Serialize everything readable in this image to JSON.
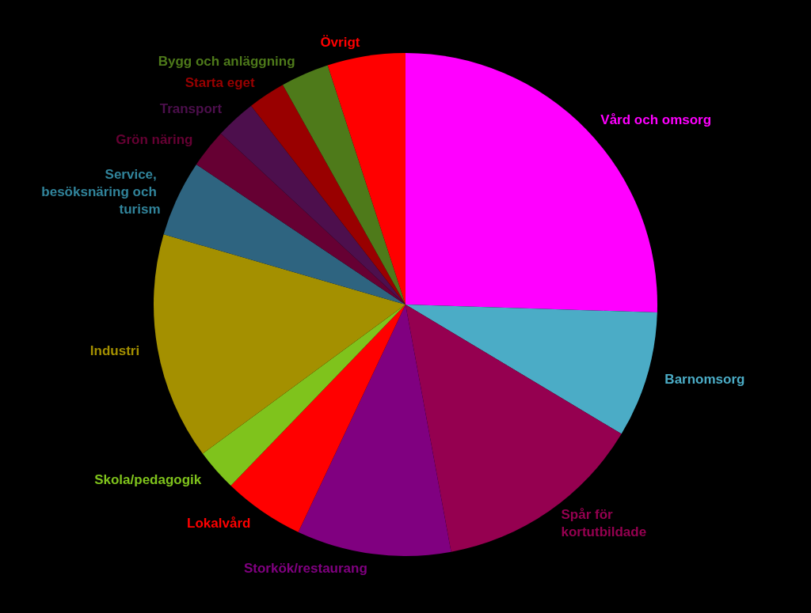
{
  "chart_data": {
    "type": "pie",
    "categories": [
      "Vård och omsorg",
      "Barnomsorg",
      "Spår för kortutbildade",
      "Storkök/restaurang",
      "Lokalvård",
      "Skola/pedagogik",
      "Industri",
      "Service, besöksnäring och turism",
      "Grön näring",
      "Transport",
      "Starta eget",
      "Bygg och anläggning",
      "Övrigt"
    ],
    "values": [
      25.5,
      8.1,
      13.5,
      9.9,
      5.2,
      2.7,
      14.6,
      4.9,
      2.5,
      2.6,
      2.4,
      3.1,
      5.0
    ],
    "colors": [
      "#ff00ff",
      "#4bacc6",
      "#950050",
      "#800080",
      "#ff0000",
      "#7fc31c",
      "#a49000",
      "#2e6480",
      "#660033",
      "#4d0f4d",
      "#990000",
      "#4e7a1a",
      "#ff0000"
    ],
    "legend": false
  }
}
